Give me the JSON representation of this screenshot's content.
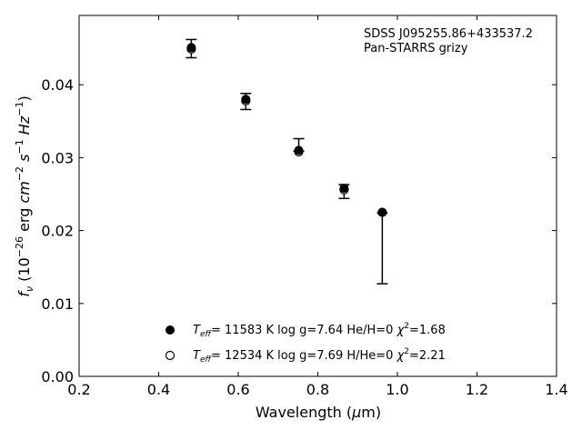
{
  "chart_data": {
    "type": "scatter",
    "annotation": [
      "SDSS J095255.86+433537.2",
      "Pan-STARRS grizy"
    ],
    "xlabel": {
      "main": "Wavelength (",
      "greek": "μ",
      "unit": "m)"
    },
    "ylabel": "f_ν (10^-26 erg cm^-2 s^-1 Hz^-1)",
    "xlim": [
      0.2,
      1.4
    ],
    "ylim": [
      0.0,
      0.0495
    ],
    "xticks": [
      0.2,
      0.4,
      0.6,
      0.8,
      1.0,
      1.2,
      1.4
    ],
    "xtick_labels": [
      "0.2",
      "0.4",
      "0.6",
      "0.8",
      "1.0",
      "1.2",
      "1.4"
    ],
    "yticks": [
      0.0,
      0.01,
      0.02,
      0.03,
      0.04
    ],
    "ytick_labels": [
      "0.00",
      "0.01",
      "0.02",
      "0.03",
      "0.04"
    ],
    "observed": {
      "x": [
        0.482,
        0.619,
        0.752,
        0.866,
        0.962
      ],
      "y": [
        0.0449,
        0.0377,
        0.0313,
        0.0253,
        0.0224
      ],
      "yerr_low": [
        0.0437,
        0.0366,
        0.0309,
        0.0244,
        0.0127
      ],
      "yerr_high": [
        0.0462,
        0.0388,
        0.0326,
        0.0263,
        0.0224
      ]
    },
    "series": [
      {
        "model": "filled",
        "label_teff": "= 11583 K  log g=7.64  He/H=0  ",
        "label_chi": "=1.68",
        "x": [
          0.482,
          0.619,
          0.752,
          0.866,
          0.962
        ],
        "y": [
          0.0451,
          0.038,
          0.031,
          0.0258,
          0.0225
        ]
      },
      {
        "model": "open",
        "label_teff": "= 12534 K  log g=7.69  H/He=0  ",
        "label_chi": "=2.21",
        "x": [
          0.482,
          0.619,
          0.752,
          0.866,
          0.962
        ],
        "y": [
          0.0449,
          0.0378,
          0.0308,
          0.0256,
          0.0225
        ]
      }
    ],
    "legend": {
      "position": "lower-center",
      "teff_symbol": "T",
      "teff_sub": "eff",
      "chi_symbol": "χ",
      "chi_sup": "2"
    },
    "grid": false
  }
}
